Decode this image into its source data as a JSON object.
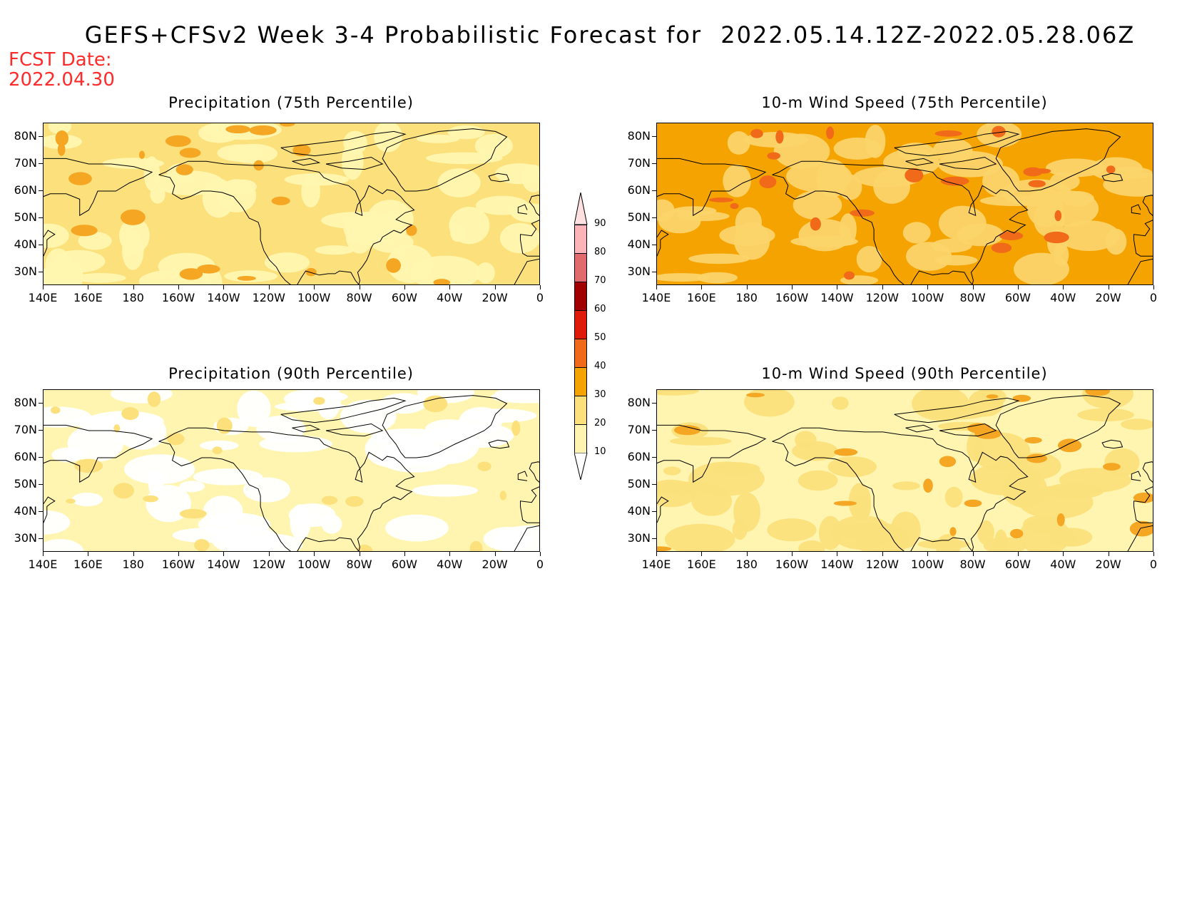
{
  "header": {
    "title": "GEFS+CFSv2 Week 3-4 Probabilistic Forecast for",
    "period": "2022.05.14.12Z-2022.05.28.06Z",
    "fcst_label": "FCST Date:",
    "fcst_date": "2022.04.30"
  },
  "axes": {
    "lat_labels": [
      "80N",
      "70N",
      "60N",
      "50N",
      "40N",
      "30N"
    ],
    "lon_labels": [
      "140E",
      "160E",
      "180",
      "160W",
      "140W",
      "120W",
      "100W",
      "80W",
      "60W",
      "40W",
      "20W",
      "0"
    ]
  },
  "panels": [
    {
      "id": "precip75",
      "title": "Precipitation (75th Percentile)",
      "base_color": "#fbe07c",
      "patch_color": "#fff5b0",
      "accent_color": "#f5a623"
    },
    {
      "id": "wind75",
      "title": "10-m Wind Speed (75th Percentile)",
      "base_color": "#f5a300",
      "patch_color": "#fbd46a",
      "accent_color": "#f06a1a"
    },
    {
      "id": "precip90",
      "title": "Precipitation (90th Percentile)",
      "base_color": "#fff5b0",
      "patch_color": "#ffffff",
      "accent_color": "#fbe07c"
    },
    {
      "id": "wind90",
      "title": "10-m Wind Speed (90th Percentile)",
      "base_color": "#fff5b0",
      "patch_color": "#fbe07c",
      "accent_color": "#f5a623"
    }
  ],
  "colorbar": {
    "levels": [
      "90",
      "80",
      "70",
      "60",
      "50",
      "40",
      "30",
      "20",
      "10"
    ],
    "colors": [
      "#fbb4b8",
      "#e06a6e",
      "#a00000",
      "#e01a0a",
      "#f06a1a",
      "#f5a300",
      "#fbe07c",
      "#fff5b0"
    ]
  }
}
